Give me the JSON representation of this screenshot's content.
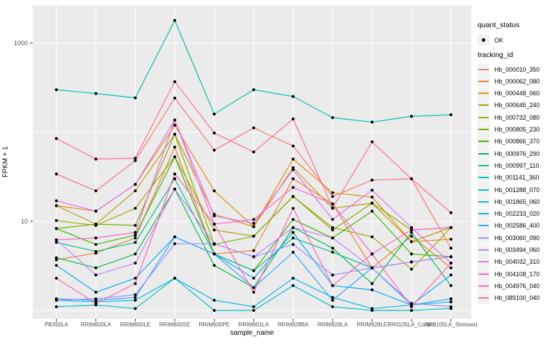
{
  "figure": {
    "y_axis_title": "FPKM + 1",
    "x_axis_title": "sample_name",
    "legend": {
      "quant_status_title": "quant_status",
      "quant_status_items": [
        {
          "label": "OK",
          "marker": "black-point"
        }
      ],
      "tracking_id_title": "tracking_id"
    }
  },
  "style": {
    "panel_bg": "#EBEBEB",
    "grid_color": "#FFFFFF",
    "tick_color": "#333333",
    "tick_label_color": "#4D4D4D",
    "point_color": "#000000",
    "legend_key_bg": "#F2F2F2"
  },
  "chart_data": {
    "type": "line",
    "title": "",
    "xlabel": "sample_name",
    "ylabel": "FPKM + 1",
    "y_scale": "log10",
    "y_tick_values": [
      10,
      1000
    ],
    "y_gridline_values": [
      1,
      10,
      100,
      1000
    ],
    "ylim": [
      0.8,
      2600
    ],
    "grid": "major white gridlines on gray panel",
    "legend_position": "right",
    "point_marker": {
      "legend": "quant_status",
      "label": "OK",
      "shape": "filled-circle",
      "color": "#000000"
    },
    "categories": [
      "PB350LA",
      "RRIM600LA",
      "RRIM600LE",
      "RRIM600SE",
      "RRIM600PE",
      "RRIM901LA",
      "RRIM928BA",
      "RRIM928LA",
      "RRIM928LE",
      "RRII105LA_Control",
      "RRII105LA_Stressed"
    ],
    "series": [
      {
        "name": "Hb_000010_350",
        "color": "#F8766D",
        "values": [
          34,
          22,
          48,
          242,
          63,
          112,
          70,
          19,
          29,
          30,
          5
        ]
      },
      {
        "name": "Hb_000062_080",
        "color": "#EA8331",
        "values": [
          3.7,
          4.4,
          6.5,
          68,
          4.3,
          4.7,
          30,
          15.7,
          3,
          6.8,
          3
        ]
      },
      {
        "name": "Hb_000448_060",
        "color": "#D89000",
        "values": [
          15,
          13,
          26,
          120,
          22,
          8.7,
          50,
          21,
          18.7,
          5.9,
          6.3
        ]
      },
      {
        "name": "Hb_000645_240",
        "color": "#C09B00",
        "values": [
          15,
          9.3,
          22,
          95,
          12,
          8.7,
          40,
          14,
          16,
          5.9,
          8.5
        ]
      },
      {
        "name": "Hb_000732_080",
        "color": "#A3A500",
        "values": [
          10.2,
          9,
          14,
          53,
          8,
          6.8,
          19,
          8.5,
          6.7,
          2.9,
          8.5
        ]
      },
      {
        "name": "Hb_000805_230",
        "color": "#7CAE00",
        "values": [
          8.3,
          9.3,
          9,
          95,
          5.5,
          6.8,
          19,
          8,
          16,
          8,
          8.5
        ]
      },
      {
        "name": "Hb_000866_370",
        "color": "#39B600",
        "values": [
          8.3,
          5.5,
          7,
          53,
          4.3,
          2.8,
          10.5,
          6.5,
          13,
          4.3,
          4
        ]
      },
      {
        "name": "Hb_000976_290",
        "color": "#00BB4E",
        "values": [
          3.9,
          3,
          4.3,
          23,
          3.2,
          1.8,
          8.5,
          5,
          2,
          7.5,
          1.9
        ]
      },
      {
        "name": "Hb_000997_110",
        "color": "#00C08B",
        "values": [
          5.8,
          4.6,
          5.8,
          30,
          4.3,
          2.8,
          6.5,
          4.5,
          3,
          3.5,
          4
        ]
      },
      {
        "name": "Hb_001141_360",
        "color": "#00C0AF",
        "values": [
          300,
          272,
          243,
          1800,
          160,
          300,
          252,
          146,
          130,
          151,
          157
        ]
      },
      {
        "name": "Hb_001288_070",
        "color": "#00BFC4",
        "values": [
          1.1,
          1.15,
          1.05,
          2.3,
          1,
          1,
          1.9,
          1.1,
          1,
          1,
          1.05
        ]
      },
      {
        "name": "Hb_001865_060",
        "color": "#00B8E7",
        "values": [
          1.3,
          1.25,
          1.3,
          2.3,
          1.3,
          1.1,
          2.3,
          1.4,
          1.05,
          1.15,
          1.25
        ]
      },
      {
        "name": "Hb_002233_020",
        "color": "#00ACFC",
        "values": [
          3.2,
          1.6,
          2.3,
          6.7,
          4.3,
          2.3,
          7.5,
          1.9,
          1.7,
          1.15,
          2.5
        ]
      },
      {
        "name": "Hb_002586_400",
        "color": "#35A2FF",
        "values": [
          1.35,
          1.3,
          1.4,
          6.7,
          4.3,
          1.8,
          4.5,
          1.3,
          3,
          1.15,
          1.35
        ]
      },
      {
        "name": "Hb_003060_090",
        "color": "#9590FF",
        "values": [
          1.3,
          1.35,
          1.5,
          5.6,
          5.6,
          4,
          5.5,
          2.5,
          3,
          1.2,
          1.1
        ]
      },
      {
        "name": "Hb_003494_060",
        "color": "#BF80FF",
        "values": [
          6.2,
          2.5,
          3.4,
          23,
          5.6,
          4,
          8.5,
          6.5,
          3,
          3.5,
          4
        ]
      },
      {
        "name": "Hb_004032_310",
        "color": "#E76BF3",
        "values": [
          17,
          13,
          26,
          137,
          11.5,
          9.5,
          38,
          10.5,
          22.4,
          8.5,
          3.4
        ]
      },
      {
        "name": "Hb_004108_170",
        "color": "#FC61D1",
        "values": [
          6.2,
          6.5,
          7.5,
          137,
          9.3,
          10.5,
          24,
          15.7,
          4.3,
          8,
          8.5
        ]
      },
      {
        "name": "Hb_004976_040",
        "color": "#FF62BC",
        "values": [
          2.3,
          1.2,
          2,
          34,
          9.3,
          1.6,
          14,
          1.9,
          4.3,
          1.1,
          3.4
        ]
      },
      {
        "name": "Hb_089100_040",
        "color": "#FF6A98",
        "values": [
          85,
          50,
          51,
          370,
          98,
          60,
          141,
          14.2,
          78,
          30,
          12.5
        ]
      }
    ]
  }
}
